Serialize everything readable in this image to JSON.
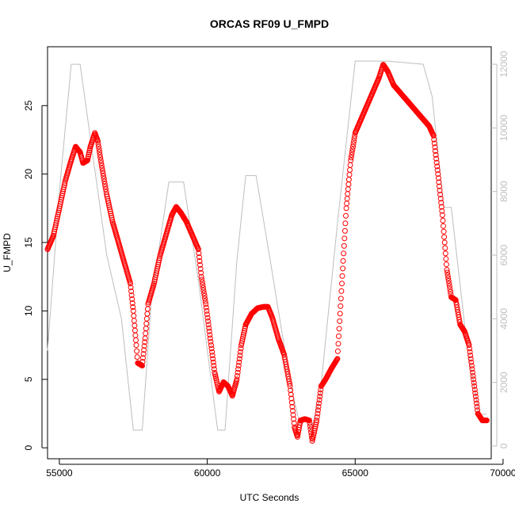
{
  "chart_data": {
    "type": "scatter",
    "title": "ORCAS RF09 U_FMPD",
    "xlabel": "UTC Seconds",
    "ylabel": "U_FMPD",
    "xlim": [
      54600,
      69600
    ],
    "ylim": [
      0,
      28
    ],
    "ylim_right": [
      0,
      12000
    ],
    "xticks": [
      55000,
      60000,
      65000,
      70000
    ],
    "yticks": [
      0,
      5,
      10,
      15,
      20,
      25
    ],
    "yticks_right": [
      0,
      2000,
      4000,
      6000,
      8000,
      10000,
      12000
    ],
    "series": [
      {
        "color": "#ff0000",
        "marker": "open-circle",
        "axis": "left",
        "points": [
          [
            54600,
            14.5
          ],
          [
            54800,
            15.5
          ],
          [
            55000,
            17.5
          ],
          [
            55200,
            19.5
          ],
          [
            55400,
            21.0
          ],
          [
            55550,
            22.0
          ],
          [
            55700,
            21.6
          ],
          [
            55800,
            20.8
          ],
          [
            55950,
            21.0
          ],
          [
            56050,
            22.0
          ],
          [
            56200,
            23.0
          ],
          [
            56300,
            22.4
          ],
          [
            56400,
            21.0
          ],
          [
            56600,
            18.5
          ],
          [
            56800,
            16.5
          ],
          [
            57000,
            15.0
          ],
          [
            57200,
            13.5
          ],
          [
            57400,
            12.0
          ],
          [
            57500,
            10.0
          ],
          [
            57600,
            7.5
          ],
          [
            57650,
            6.2
          ],
          [
            57800,
            6.0
          ],
          [
            57900,
            8.0
          ],
          [
            58000,
            10.5
          ],
          [
            58200,
            12.0
          ],
          [
            58400,
            14.0
          ],
          [
            58600,
            15.5
          ],
          [
            58800,
            17.0
          ],
          [
            58950,
            17.6
          ],
          [
            59100,
            17.2
          ],
          [
            59300,
            16.5
          ],
          [
            59500,
            15.5
          ],
          [
            59700,
            14.5
          ],
          [
            59800,
            12.5
          ],
          [
            59950,
            10.5
          ],
          [
            60100,
            8.0
          ],
          [
            60250,
            5.5
          ],
          [
            60400,
            4.1
          ],
          [
            60550,
            4.8
          ],
          [
            60700,
            4.5
          ],
          [
            60850,
            3.8
          ],
          [
            61000,
            5.0
          ],
          [
            61150,
            7.5
          ],
          [
            61300,
            9.0
          ],
          [
            61500,
            9.8
          ],
          [
            61700,
            10.2
          ],
          [
            61900,
            10.3
          ],
          [
            62050,
            10.3
          ],
          [
            62200,
            9.5
          ],
          [
            62400,
            8.0
          ],
          [
            62600,
            6.8
          ],
          [
            62800,
            4.5
          ],
          [
            62950,
            1.5
          ],
          [
            63050,
            0.8
          ],
          [
            63150,
            2.0
          ],
          [
            63300,
            2.1
          ],
          [
            63450,
            2.0
          ],
          [
            63550,
            0.5
          ],
          [
            63700,
            2.0
          ],
          [
            63850,
            4.5
          ],
          [
            64000,
            5.0
          ],
          [
            64200,
            5.8
          ],
          [
            64400,
            6.5
          ],
          [
            64550,
            12.0
          ],
          [
            64700,
            17.5
          ],
          [
            64850,
            21.0
          ],
          [
            65000,
            23.0
          ],
          [
            65200,
            24.0
          ],
          [
            65400,
            25.0
          ],
          [
            65600,
            26.0
          ],
          [
            65800,
            27.0
          ],
          [
            65950,
            28.0
          ],
          [
            66100,
            27.5
          ],
          [
            66300,
            26.5
          ],
          [
            66500,
            26.0
          ],
          [
            66700,
            25.5
          ],
          [
            66900,
            25.0
          ],
          [
            67100,
            24.5
          ],
          [
            67300,
            24.0
          ],
          [
            67500,
            23.5
          ],
          [
            67650,
            22.8
          ],
          [
            67800,
            20.0
          ],
          [
            67950,
            17.0
          ],
          [
            68100,
            13.0
          ],
          [
            68250,
            11.0
          ],
          [
            68400,
            10.8
          ],
          [
            68550,
            9.0
          ],
          [
            68700,
            8.5
          ],
          [
            68850,
            7.5
          ],
          [
            69000,
            5.0
          ],
          [
            69150,
            2.5
          ],
          [
            69300,
            2.0
          ],
          [
            69450,
            2.0
          ]
        ]
      },
      {
        "color": "#bebebe",
        "marker": "line",
        "axis": "right",
        "points": [
          [
            54600,
            3000
          ],
          [
            55000,
            8000
          ],
          [
            55400,
            12000
          ],
          [
            55700,
            12000
          ],
          [
            56000,
            10000
          ],
          [
            56600,
            6000
          ],
          [
            57100,
            4000
          ],
          [
            57500,
            500
          ],
          [
            57800,
            500
          ],
          [
            58100,
            4500
          ],
          [
            58700,
            8300
          ],
          [
            59200,
            8300
          ],
          [
            59700,
            5200
          ],
          [
            60350,
            500
          ],
          [
            60600,
            500
          ],
          [
            61000,
            5800
          ],
          [
            61300,
            8500
          ],
          [
            61650,
            8500
          ],
          [
            62100,
            6000
          ],
          [
            62800,
            2000
          ],
          [
            63150,
            600
          ],
          [
            63350,
            900
          ],
          [
            63500,
            500
          ],
          [
            63800,
            1500
          ],
          [
            64400,
            7000
          ],
          [
            65000,
            12100
          ],
          [
            66100,
            12100
          ],
          [
            67300,
            12000
          ],
          [
            67600,
            11000
          ],
          [
            68000,
            7500
          ],
          [
            68250,
            7500
          ],
          [
            68800,
            3000
          ],
          [
            69200,
            1000
          ],
          [
            69450,
            1000
          ]
        ]
      }
    ],
    "grid": false
  }
}
